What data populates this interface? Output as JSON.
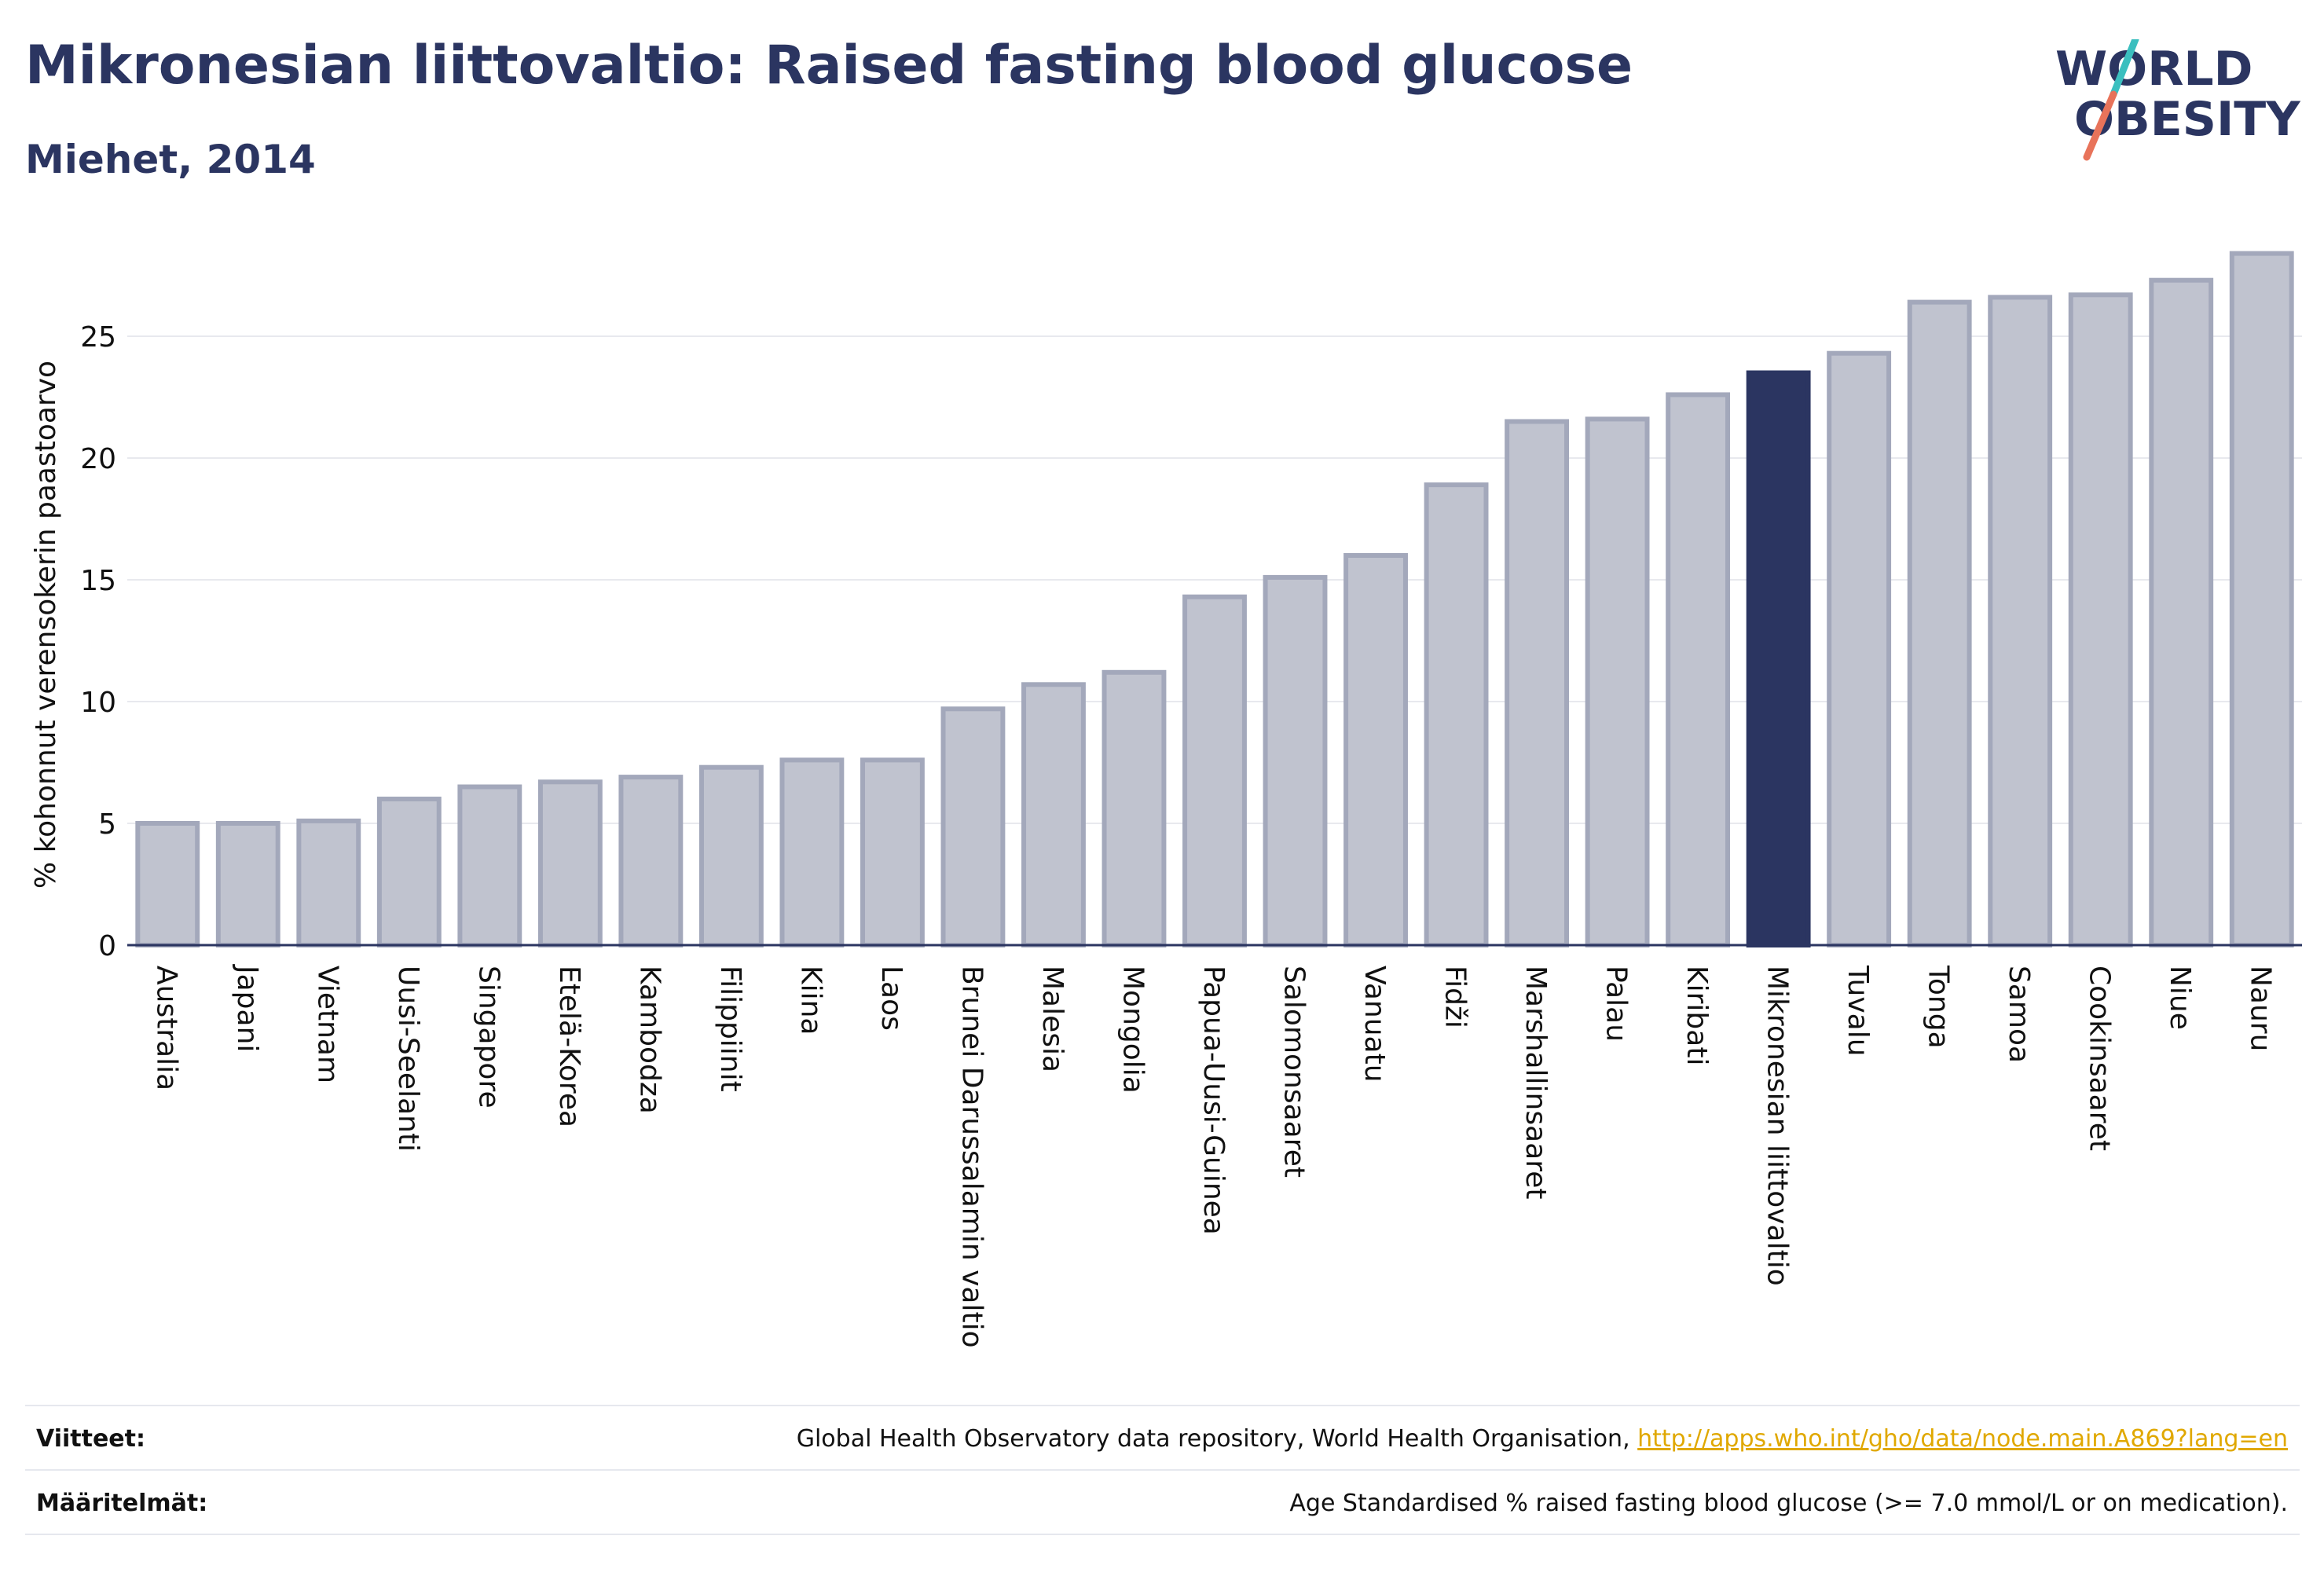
{
  "header": {
    "title": "Mikronesian liittovaltio: Raised fasting blood glucose",
    "subtitle": "Miehet, 2014"
  },
  "logo": {
    "line1": "WORLD",
    "line2": "OBESITY",
    "color_text": "#2b3561",
    "color_slash_top": "#3bbfbf",
    "color_slash_bottom": "#e8735a"
  },
  "colors": {
    "bar_fill": "#c0c3cf",
    "bar_stroke": "#a3a8bb",
    "highlight_fill": "#2b3561",
    "axis": "#2b3561",
    "grid": "#e8e9ee"
  },
  "chart_data": {
    "type": "bar",
    "ylabel": "% kohonnut verensokerin paastoarvo",
    "ylim": [
      0,
      29
    ],
    "yticks": [
      0,
      5,
      10,
      15,
      20,
      25
    ],
    "grid": true,
    "highlight": "Mikronesian liittovaltio",
    "categories": [
      "Australia",
      "Japani",
      "Vietnam",
      "Uusi-Seelanti",
      "Singapore",
      "Etelä-Korea",
      "Kambodza",
      "Filippiinit",
      "Kiina",
      "Laos",
      "Brunei Darussalamin valtio",
      "Malesia",
      "Mongolia",
      "Papua-Uusi-Guinea",
      "Salomonsaaret",
      "Vanuatu",
      "Fidži",
      "Marshallinsaaret",
      "Palau",
      "Kiribati",
      "Mikronesian liittovaltio",
      "Tuvalu",
      "Tonga",
      "Samoa",
      "Cookinsaaret",
      "Niue",
      "Nauru"
    ],
    "values": [
      5.0,
      5.0,
      5.1,
      6.0,
      6.5,
      6.7,
      6.9,
      7.3,
      7.6,
      7.6,
      9.7,
      10.7,
      11.2,
      14.3,
      15.1,
      16.0,
      18.9,
      21.5,
      21.6,
      22.6,
      23.5,
      24.3,
      26.4,
      26.6,
      26.7,
      27.3,
      28.4
    ]
  },
  "footer": {
    "sources_label": "Viitteet:",
    "sources_text": "Global Health Observatory data repository, World Health Organisation, ",
    "sources_link": "http://apps.who.int/gho/data/node.main.A869?lang=en",
    "definitions_label": "Määritelmät:",
    "definitions_text": "Age Standardised % raised fasting blood glucose (>= 7.0 mmol/L or on medication)."
  }
}
